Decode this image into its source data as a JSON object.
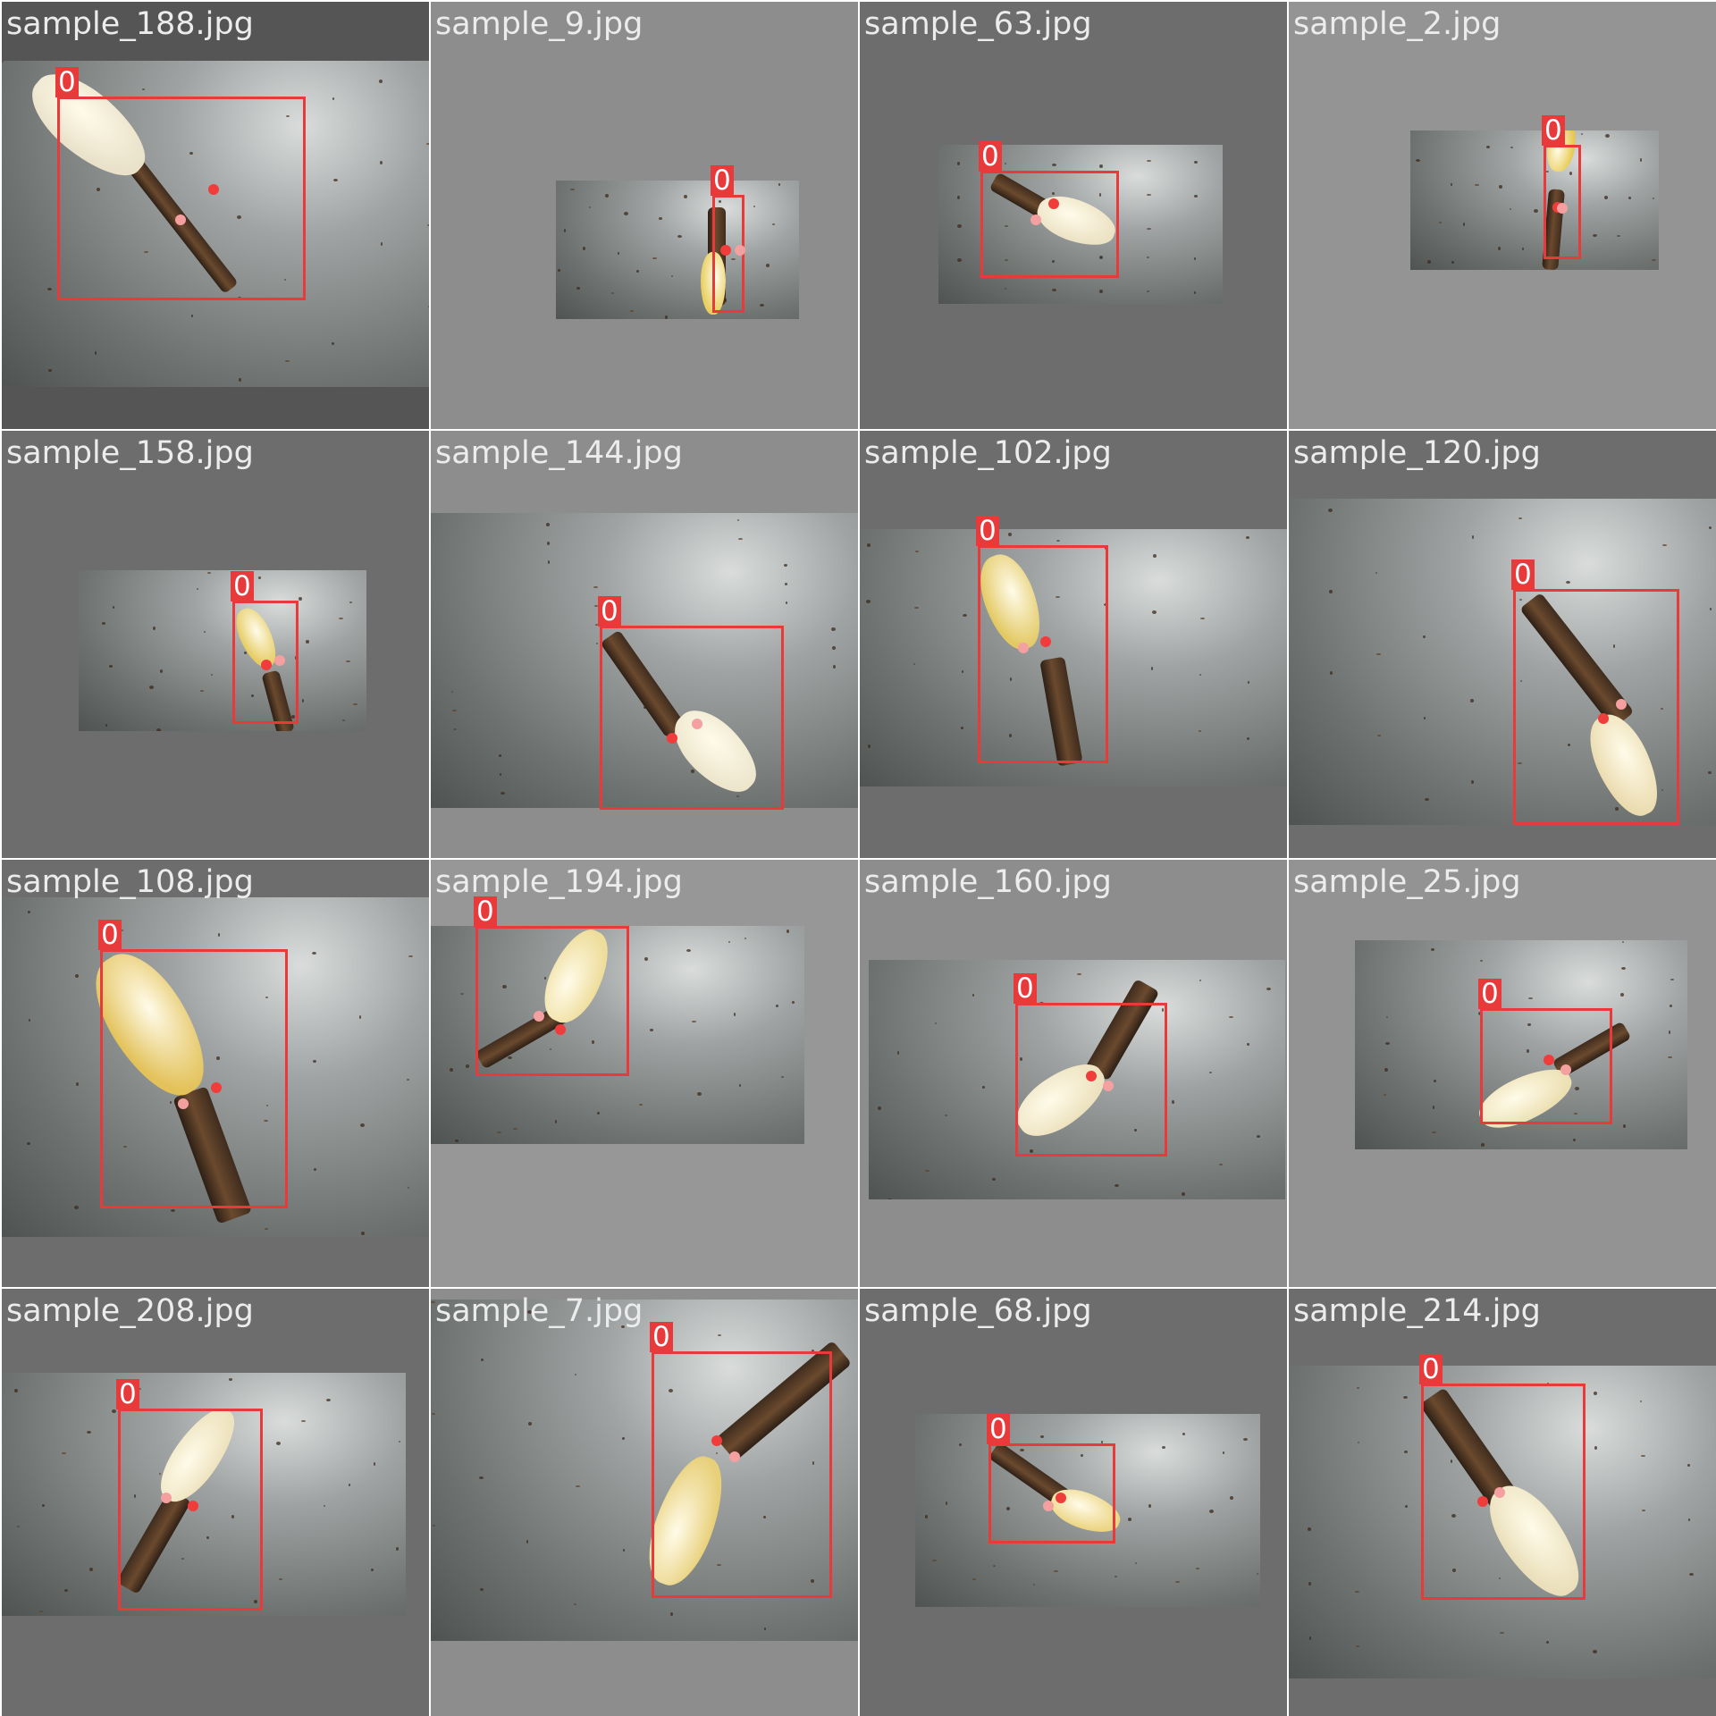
{
  "colors": {
    "box": "#e83a3a",
    "kp_a": "#f13c3c",
    "kp_b": "#f4a0a0",
    "label_text": "#ffffff",
    "filename_text": "#ececec"
  },
  "tiles": [
    {
      "filename": "sample_188.jpg",
      "class_label": "0"
    },
    {
      "filename": "sample_9.jpg",
      "class_label": "0"
    },
    {
      "filename": "sample_63.jpg",
      "class_label": "0"
    },
    {
      "filename": "sample_2.jpg",
      "class_label": "0"
    },
    {
      "filename": "sample_158.jpg",
      "class_label": "0"
    },
    {
      "filename": "sample_144.jpg",
      "class_label": "0"
    },
    {
      "filename": "sample_102.jpg",
      "class_label": "0"
    },
    {
      "filename": "sample_120.jpg",
      "class_label": "0"
    },
    {
      "filename": "sample_108.jpg",
      "class_label": "0"
    },
    {
      "filename": "sample_194.jpg",
      "class_label": "0"
    },
    {
      "filename": "sample_160.jpg",
      "class_label": "0"
    },
    {
      "filename": "sample_25.jpg",
      "class_label": "0"
    },
    {
      "filename": "sample_208.jpg",
      "class_label": "0"
    },
    {
      "filename": "sample_7.jpg",
      "class_label": "0"
    },
    {
      "filename": "sample_68.jpg",
      "class_label": "0"
    },
    {
      "filename": "sample_214.jpg",
      "class_label": "0"
    }
  ]
}
